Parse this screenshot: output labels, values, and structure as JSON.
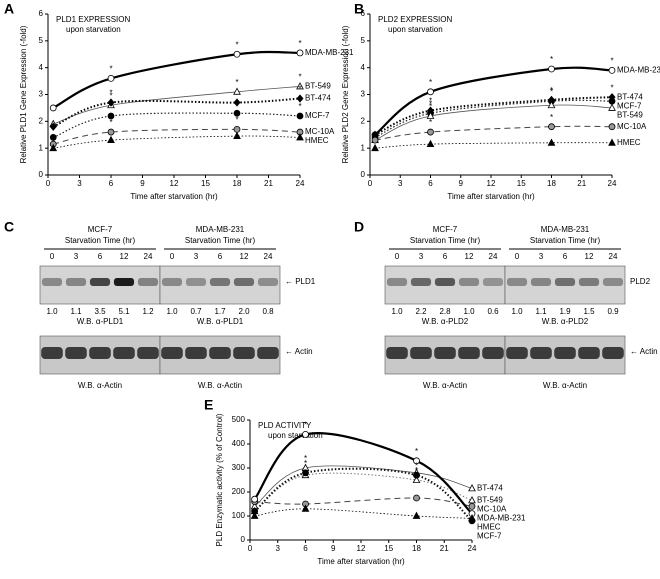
{
  "chart_data": [
    {
      "type": "line",
      "panel": "A",
      "title": "PLD1 EXPRESSION",
      "subtitle": "upon starvation",
      "xlabel": "Time after starvation (hr)",
      "ylabel": "Relative PLD1 Gene Expression (-fold)",
      "x": [
        0.5,
        6,
        18,
        24
      ],
      "xlim": [
        0,
        24
      ],
      "xticks": [
        0,
        3,
        6,
        9,
        12,
        15,
        18,
        21,
        24
      ],
      "ylim": [
        0,
        6
      ],
      "yticks": [
        0,
        1,
        2,
        3,
        4,
        5,
        6
      ],
      "series": [
        {
          "name": "MDA-MB-231",
          "color": "#000000",
          "dash": "solid",
          "width": 2.2,
          "marker": "circle-open",
          "values": [
            2.5,
            3.6,
            4.5,
            4.55
          ],
          "significance": [
            null,
            "*",
            "*",
            "*"
          ]
        },
        {
          "name": "BT-549",
          "color": "#555555",
          "dash": "solid",
          "width": 0.8,
          "marker": "triangle-open",
          "values": [
            1.9,
            2.6,
            3.1,
            3.3
          ],
          "significance": [
            null,
            "*",
            "*",
            "*"
          ]
        },
        {
          "name": "BT-474",
          "color": "#000000",
          "dash": "dotted",
          "width": 2,
          "marker": "diamond-filled",
          "values": [
            1.8,
            2.7,
            2.7,
            2.85
          ],
          "significance": [
            null,
            "*",
            null,
            "*"
          ]
        },
        {
          "name": "MCF-7",
          "color": "#222222",
          "dash": "dotted",
          "width": 1.2,
          "marker": "circle-filled",
          "values": [
            1.4,
            2.2,
            2.3,
            2.2
          ],
          "significance": [
            null,
            "*",
            "*",
            "*"
          ]
        },
        {
          "name": "MC-10A",
          "color": "#444444",
          "dash": "dashed",
          "width": 1,
          "marker": "circle-gray",
          "values": [
            1.15,
            1.6,
            1.7,
            1.6
          ],
          "significance": [
            null,
            "*",
            "*",
            null
          ]
        },
        {
          "name": "HMEC",
          "color": "#000000",
          "dash": "dotted",
          "width": 0.8,
          "marker": "triangle-filled",
          "values": [
            1.0,
            1.3,
            1.45,
            1.4
          ],
          "significance": [
            null,
            null,
            null,
            null
          ]
        }
      ]
    },
    {
      "type": "line",
      "panel": "B",
      "title": "PLD2 EXPRESSION",
      "subtitle": "upon starvation",
      "xlabel": "Time after starvation (hr)",
      "ylabel": "Relative PLD2 Gene Expression (-fold)",
      "x": [
        0.5,
        6,
        18,
        24
      ],
      "xlim": [
        0,
        24
      ],
      "xticks": [
        0,
        3,
        6,
        9,
        12,
        15,
        18,
        21,
        24
      ],
      "ylim": [
        0,
        6
      ],
      "yticks": [
        0,
        1,
        2,
        3,
        4,
        5,
        6
      ],
      "series": [
        {
          "name": "MDA-MB-231",
          "color": "#000000",
          "dash": "solid",
          "width": 2.2,
          "marker": "circle-open",
          "values": [
            1.5,
            3.1,
            3.95,
            3.9
          ],
          "significance": [
            null,
            "*",
            "*",
            "*"
          ]
        },
        {
          "name": "BT-474",
          "color": "#000000",
          "dash": "dotted",
          "width": 2,
          "marker": "diamond-filled",
          "values": [
            1.5,
            2.4,
            2.8,
            2.9
          ],
          "significance": [
            null,
            "*",
            "*",
            "*"
          ]
        },
        {
          "name": "MCF-7",
          "color": "#222222",
          "dash": "dotted",
          "width": 1.2,
          "marker": "circle-filled",
          "values": [
            1.4,
            2.3,
            2.75,
            2.75
          ],
          "significance": [
            null,
            "*",
            "*",
            null
          ]
        },
        {
          "name": "BT-549",
          "color": "#555555",
          "dash": "solid",
          "width": 0.8,
          "marker": "triangle-open",
          "values": [
            1.3,
            2.2,
            2.6,
            2.5
          ],
          "significance": [
            null,
            "*",
            null,
            null
          ]
        },
        {
          "name": "MC-10A",
          "color": "#444444",
          "dash": "dashed",
          "width": 1,
          "marker": "circle-gray",
          "values": [
            1.3,
            1.6,
            1.8,
            1.8
          ],
          "significance": [
            null,
            "*",
            "*",
            null
          ]
        },
        {
          "name": "HMEC",
          "color": "#000000",
          "dash": "dotted",
          "width": 0.8,
          "marker": "triangle-filled",
          "values": [
            1.0,
            1.15,
            1.2,
            1.2
          ],
          "significance": [
            null,
            null,
            null,
            null
          ]
        }
      ]
    },
    {
      "type": "line",
      "panel": "E",
      "title": "PLD ACTIVITY",
      "subtitle": "upon starvation",
      "xlabel": "Time after starvation (hr)",
      "ylabel": "PLD Enzymatic activity (% of Control)",
      "x": [
        0.5,
        6,
        18,
        24
      ],
      "xlim": [
        0,
        24
      ],
      "xticks": [
        0,
        3,
        6,
        9,
        12,
        15,
        18,
        21,
        24
      ],
      "ylim": [
        0,
        500
      ],
      "yticks": [
        0,
        100,
        200,
        300,
        400,
        500
      ],
      "series": [
        {
          "name": "BT-474",
          "color": "#555555",
          "dash": "solid",
          "width": 0.8,
          "marker": "triangle-open",
          "values": [
            140,
            300,
            280,
            215
          ],
          "significance": [
            null,
            "*",
            "*",
            null
          ]
        },
        {
          "name": "BT-549",
          "color": "#777777",
          "dash": "dotted",
          "width": 1,
          "marker": "triangle-open",
          "values": [
            120,
            270,
            250,
            165
          ],
          "significance": [
            null,
            null,
            "*",
            null
          ]
        },
        {
          "name": "MC-10A",
          "color": "#444444",
          "dash": "dashed",
          "width": 1,
          "marker": "circle-gray",
          "values": [
            160,
            150,
            175,
            140
          ],
          "significance": [
            null,
            null,
            null,
            null
          ]
        },
        {
          "name": "MDA-MB-231",
          "color": "#000000",
          "dash": "solid",
          "width": 2.2,
          "marker": "circle-open",
          "values": [
            170,
            440,
            330,
            110
          ],
          "significance": [
            null,
            "*",
            "*",
            null
          ]
        },
        {
          "name": "HMEC",
          "color": "#000000",
          "dash": "dotted",
          "width": 0.8,
          "marker": "triangle-filled",
          "values": [
            100,
            130,
            100,
            90
          ],
          "significance": [
            null,
            null,
            null,
            null
          ]
        },
        {
          "name": "MCF-7",
          "color": "#111111",
          "dash": "dotted",
          "width": 2,
          "marker": "circle-filled",
          "values": [
            120,
            280,
            270,
            80
          ],
          "significance": [
            null,
            "*",
            "*",
            null
          ]
        }
      ]
    }
  ],
  "blots": [
    {
      "panel": "C",
      "protein": "← PLD1",
      "control": "← Actin",
      "groups": [
        {
          "name": "MCF-7",
          "subtitle": "Starvation Time (hr)",
          "lanes": [
            "0",
            "3",
            "6",
            "12",
            "24"
          ],
          "quant": [
            "1.0",
            "1.1",
            "3.5",
            "5.1",
            "1.2"
          ],
          "wb": "W.B. α-PLD1",
          "actin_wb": "W.B. α-Actin"
        },
        {
          "name": "MDA-MB-231",
          "subtitle": "Starvation Time (hr)",
          "lanes": [
            "0",
            "3",
            "6",
            "12",
            "24"
          ],
          "quant": [
            "1.0",
            "0.7",
            "1.7",
            "2.0",
            "0.8"
          ],
          "wb": "W.B. α-PLD1",
          "actin_wb": "W.B. α-Actin"
        }
      ]
    },
    {
      "panel": "D",
      "protein": "PLD2",
      "control": "← Actin",
      "groups": [
        {
          "name": "MCF-7",
          "subtitle": "Starvation Time (hr)",
          "lanes": [
            "0",
            "3",
            "6",
            "12",
            "24"
          ],
          "quant": [
            "1.0",
            "2.2",
            "2.8",
            "1.0",
            "0.6"
          ],
          "wb": "W.B. α-PLD2",
          "actin_wb": "W.B. α-Actin"
        },
        {
          "name": "MDA-MB-231",
          "subtitle": "Starvation Time (hr)",
          "lanes": [
            "0",
            "3",
            "6",
            "12",
            "24"
          ],
          "quant": [
            "1.0",
            "1.1",
            "1.9",
            "1.5",
            "0.9"
          ],
          "wb": "W.B. α-PLD2",
          "actin_wb": "W.B. α-Actin"
        }
      ]
    }
  ]
}
